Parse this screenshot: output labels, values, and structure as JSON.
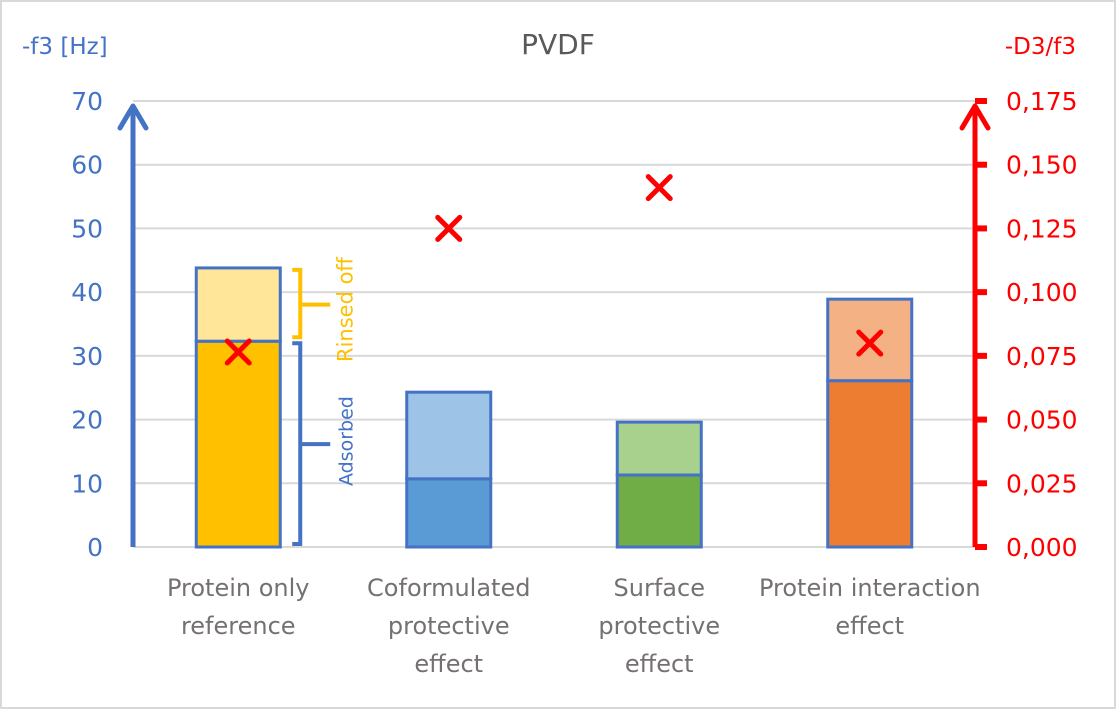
{
  "chart_data": {
    "type": "bar",
    "subtype": "stacked-bar-with-scatter-secondary-axis",
    "title": "PVDF",
    "ylabel": "-f3 [Hz]",
    "y2label": "-D3/f3",
    "ylim": [
      0,
      70
    ],
    "y2lim": [
      0,
      0.175
    ],
    "yticks": [
      "0",
      "10",
      "20",
      "30",
      "40",
      "50",
      "60",
      "70"
    ],
    "y2ticks": [
      "0,000",
      "0,025",
      "0,050",
      "0,075",
      "0,100",
      "0,125",
      "0,150",
      "0,175"
    ],
    "grid": true,
    "categories": [
      [
        "Protein only",
        "reference"
      ],
      [
        "Coformulated",
        "protective",
        "effect"
      ],
      [
        "Surface",
        "protective",
        "effect"
      ],
      [
        "Protein interaction",
        "effect"
      ]
    ],
    "category_names": [
      "Protein only reference",
      "Coformulated protective effect",
      "Surface protective effect",
      "Protein interaction effect"
    ],
    "series": [
      {
        "name": "Adsorbed",
        "axis": "left",
        "values": [
          32.3,
          10.7,
          11.3,
          26.1
        ]
      },
      {
        "name": "Rinsed off",
        "axis": "left",
        "values": [
          11.5,
          13.6,
          8.3,
          12.8
        ]
      },
      {
        "name": "-D3/f3",
        "axis": "right",
        "type": "scatter",
        "marker": "x",
        "values": [
          0.0765,
          0.125,
          0.141,
          0.08
        ]
      }
    ],
    "bar_colors": {
      "adsorbed": [
        "#ffc000",
        "#5b9bd5",
        "#70ad47",
        "#ed7d31"
      ],
      "rinsed": [
        "#ffe699",
        "#9dc3e6",
        "#a9d18e",
        "#f4b183"
      ],
      "outline": "#4472c4"
    },
    "annotations": [
      {
        "text": "Rinsed off",
        "color": "#ffc000",
        "applies_to": "Protein only reference"
      },
      {
        "text": "Adsorbed",
        "color": "#4472c4",
        "applies_to": "Protein only reference"
      }
    ],
    "colors": {
      "left_axis": "#4472c4",
      "right_axis": "#ff0000",
      "marker": "#ff0000",
      "category_text": "#767171",
      "title": "#595959"
    }
  }
}
